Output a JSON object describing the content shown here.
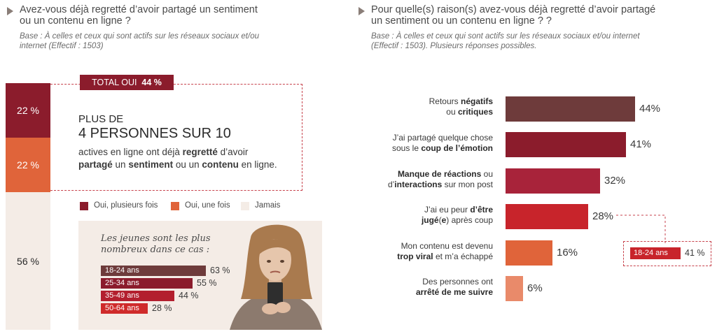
{
  "left": {
    "question": "Avez-vous déjà regretté d’avoir partagé un sentiment ou un contenu en ligne ?",
    "question_line1": "Avez-vous déjà regretté d’avoir partagé un sentiment",
    "question_line2": "ou un contenu en ligne ?",
    "base_line1": "Base : À celles et ceux qui sont actifs sur les réseaux sociaux et/ou",
    "base_line2": "internet (Effectif : 1503)",
    "total_label": "TOTAL OUI",
    "total_value": "44 %",
    "headline_small": "PLUS DE",
    "headline_big": "4 PERSONNES SUR 10",
    "desc_part1": "actives en ligne ont déjà ",
    "desc_bold1": "regretté",
    "desc_part2": " d’avoir",
    "desc_bold2": "partagé",
    "desc_part3": " un ",
    "desc_bold3": "sentiment",
    "desc_part4": " ou un ",
    "desc_bold4": "contenu",
    "desc_part5": " en ligne.",
    "colors": {
      "plusieurs": "#8b1c2c",
      "une_fois": "#e0643a",
      "jamais": "#f4ece6"
    }
  },
  "young": {
    "line1": "Les jeunes sont les plus",
    "line2": "nombreux dans ce cas :"
  },
  "right": {
    "question_line1": "Pour quelle(s) raison(s) avez-vous déjà regretté d’avoir partagé",
    "question_line2": "un sentiment ou un contenu en ligne ? ?",
    "base_line1": "Base : À celles et ceux qui sont actifs sur les réseaux sociaux et/ou internet",
    "base_line2": "(Effectif : 1503). Plusieurs réponses possibles.",
    "callout_label": "18-24 ans",
    "callout_value": "41 %",
    "reasons": [
      {
        "l1a": "Retours ",
        "l1b": "négatifs",
        "l2a": "ou ",
        "l2b": "critiques",
        "l2c": ""
      },
      {
        "l1a": "J’ai partagé quelque chose",
        "l1b": "",
        "l2a": "sous le ",
        "l2b": "coup de l’émotion",
        "l2c": ""
      },
      {
        "l1a": "",
        "l1b": "Manque de réactions",
        "l1c": " ou",
        "l2a": "d’",
        "l2b": "interactions",
        "l2c": " sur mon post"
      },
      {
        "l1a": "J’ai eu peur ",
        "l1b": "d’être",
        "l2a": "",
        "l2b": "jugé",
        "l2c": "(",
        "l2d": "e",
        "l2e": ") après coup"
      },
      {
        "l1a": "Mon contenu est devenu",
        "l1b": "",
        "l2a": "",
        "l2b": "trop viral",
        "l2c": " et m’a échappé"
      },
      {
        "l1a": "Des personnes ont",
        "l1b": "",
        "l2a": "",
        "l2b": "arrêté de me suivre",
        "l2c": ""
      }
    ]
  },
  "chart_data": [
    {
      "type": "bar",
      "series": [
        {
          "name": "Oui, plusieurs fois",
          "values": [
            22
          ],
          "label": "22 %"
        },
        {
          "name": "Oui, une fois",
          "values": [
            22
          ],
          "label": "22 %"
        },
        {
          "name": "Jamais",
          "values": [
            56
          ],
          "label": "56 %"
        }
      ],
      "stacked": true,
      "legend": "bottom"
    },
    {
      "type": "bar",
      "orientation": "horizontal",
      "categories": [
        "18-24 ans",
        "25-34 ans",
        "35-49 ans",
        "50-64 ans"
      ],
      "values": [
        63,
        55,
        44,
        28
      ],
      "labels": [
        "63 %",
        "55 %",
        "44 %",
        "28 %"
      ],
      "colors": [
        "#6e3b3b",
        "#8b1c2c",
        "#b31f2e",
        "#cf2b2b"
      ]
    },
    {
      "type": "bar",
      "orientation": "horizontal",
      "categories": [
        "Retours négatifs ou critiques",
        "J’ai partagé quelque chose sous le coup de l’émotion",
        "Manque de réactions ou d’interactions sur mon post",
        "J’ai eu peur d’être jugé(e) après coup",
        "Mon contenu est devenu trop viral et m’a échappé",
        "Des personnes ont arrêté de me suivre"
      ],
      "values": [
        44,
        41,
        32,
        28,
        16,
        6
      ],
      "labels": [
        "44%",
        "41%",
        "32%",
        "28%",
        "16%",
        "6%"
      ],
      "colors": [
        "#6e3b3b",
        "#8b1c2c",
        "#a8233a",
        "#c8242b",
        "#e0643a",
        "#e98a6a"
      ]
    }
  ]
}
